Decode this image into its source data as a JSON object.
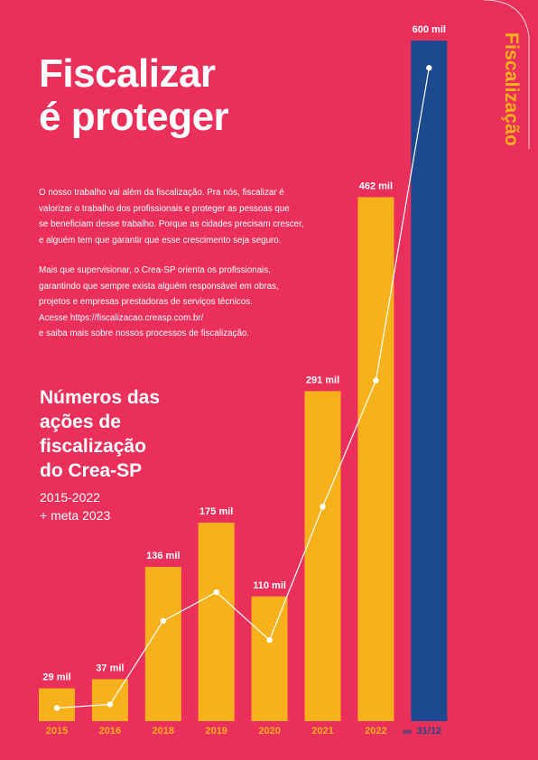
{
  "side_tab": "Fiscalização",
  "title": [
    "Fiscalizar",
    "é proteger"
  ],
  "paragraph_1": [
    "O nosso trabalho vai além da fiscalização. Pra nós, fiscalizar é",
    "valorizar o trabalho dos profissionais e proteger as pessoas que",
    "se beneficiam desse trabalho. Porque as cidades precisam crescer,",
    "e alguém tem que garantir que esse crescimento seja seguro."
  ],
  "paragraph_2": [
    "Mais que supervisionar, o Crea-SP orienta os profissionais,",
    "garantindo que sempre exista alguém responsável em obras,",
    "projetos e empresas prestadoras de serviços técnicos.",
    "Acesse https://fiscalizacao.creasp.com.br/",
    "e saiba mais sobre nossos processos de fiscalização."
  ],
  "chart_data": {
    "type": "bar",
    "title": [
      "Números das",
      "ações de",
      "fiscalização",
      "do Crea-SP"
    ],
    "subtitle": [
      "2015-2022",
      "+ meta 2023"
    ],
    "categories": [
      "2015",
      "2016",
      "2018",
      "2019",
      "2020",
      "2021",
      "2022",
      "31/12"
    ],
    "category_prefix_last": "até",
    "values": [
      29,
      37,
      136,
      175,
      110,
      291,
      462,
      600
    ],
    "data_labels": [
      "29 mil",
      "37 mil",
      "136 mil",
      "175 mil",
      "110 mil",
      "291 mil",
      "462 mil",
      "600 mil"
    ],
    "unit": "mil",
    "ylim": [
      0,
      600
    ],
    "overlay": "line",
    "colors": {
      "bars": "#f7b21b",
      "meta_bar": "#1d4a8f",
      "line": "#ffffff",
      "background": "#eb2f5b",
      "tick_labels": "#f7b21b",
      "meta_tick_label": "#1d4a8f"
    },
    "grid": false
  }
}
